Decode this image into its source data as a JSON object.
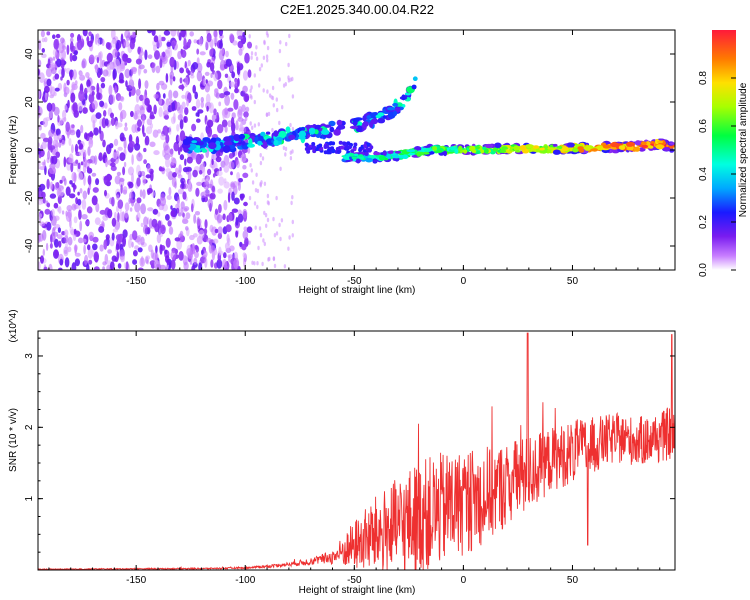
{
  "title": "C2E1.2025.340.00.04.R22",
  "colors": {
    "snr_line": "#ee3030",
    "spectrogram_purple": "#7a1cf0",
    "axis": "#000000",
    "background": "#ffffff"
  },
  "chart_data": [
    {
      "type": "heatmap",
      "title": "C2E1.2025.340.00.04.R22",
      "xlabel": "Height of straight line (km)",
      "ylabel": "Frequency (Hz)",
      "xlim": [
        -195,
        97
      ],
      "ylim": [
        -50,
        50
      ],
      "xticks": [
        -150,
        -100,
        -50,
        0,
        50
      ],
      "xtick_labels": [
        "-150",
        "-100",
        "-50",
        "0",
        "50"
      ],
      "yticks": [
        -40,
        -20,
        0,
        20,
        40
      ],
      "ytick_labels": [
        "-40",
        "-20",
        "0",
        "20",
        "40"
      ],
      "colorbar": {
        "label": "Normalized spectral amplitude",
        "range": [
          0.0,
          1.0
        ],
        "ticks": [
          0.0,
          0.2,
          0.4,
          0.6,
          0.8
        ],
        "tick_labels": [
          "0.0",
          "0.2",
          "0.4",
          "0.6",
          "0.8"
        ]
      },
      "features": {
        "noise_region_x": [
          -195,
          -98
        ],
        "rising_branch": {
          "x": [
            -128,
            -110,
            -95,
            -80,
            -65,
            -50,
            -40,
            -32,
            -26,
            -22
          ],
          "freq": [
            2,
            2,
            4,
            6,
            8,
            10,
            13,
            17,
            22,
            28
          ]
        },
        "main_line": {
          "x": [
            -55,
            -40,
            -28,
            -15,
            0,
            20,
            40,
            60,
            80,
            90,
            97
          ],
          "freq": [
            -3,
            -3,
            -2,
            0,
            0,
            0.5,
            0.5,
            1,
            1.5,
            2.5,
            1
          ]
        }
      }
    },
    {
      "type": "line",
      "xlabel": "Height of straight line (km)",
      "ylabel": "SNR (10 * v/v)",
      "scale_label": "(x10^4)",
      "xlim": [
        -195,
        97
      ],
      "ylim": [
        0,
        3.35
      ],
      "xticks": [
        -150,
        -100,
        -50,
        0,
        50
      ],
      "xtick_labels": [
        "-150",
        "-100",
        "-50",
        "0",
        "50"
      ],
      "yticks": [
        1,
        2,
        3
      ],
      "ytick_labels": [
        "1",
        "2",
        "3"
      ],
      "series": [
        {
          "name": "SNR",
          "envelope_x": [
            -195,
            -120,
            -100,
            -90,
            -80,
            -70,
            -60,
            -50,
            -40,
            -30,
            -20,
            -10,
            0,
            10,
            20,
            30,
            40,
            50,
            60,
            70,
            80,
            90,
            97
          ],
          "envelope_mean": [
            0.01,
            0.02,
            0.03,
            0.05,
            0.08,
            0.12,
            0.18,
            0.35,
            0.5,
            0.6,
            0.75,
            0.85,
            0.95,
            1.05,
            1.2,
            1.35,
            1.55,
            1.65,
            1.75,
            1.85,
            1.8,
            1.85,
            1.95
          ],
          "envelope_spread": [
            0.005,
            0.01,
            0.01,
            0.02,
            0.03,
            0.05,
            0.1,
            0.35,
            0.55,
            0.7,
            0.8,
            0.8,
            0.75,
            0.7,
            0.6,
            0.55,
            0.45,
            0.45,
            0.4,
            0.35,
            0.35,
            0.35,
            0.4
          ],
          "peaks": [
            {
              "x": 29.5,
              "y": 3.32
            },
            {
              "x": 95.5,
              "y": 3.3
            },
            {
              "x": 57,
              "y": 0.35
            }
          ]
        }
      ]
    }
  ]
}
